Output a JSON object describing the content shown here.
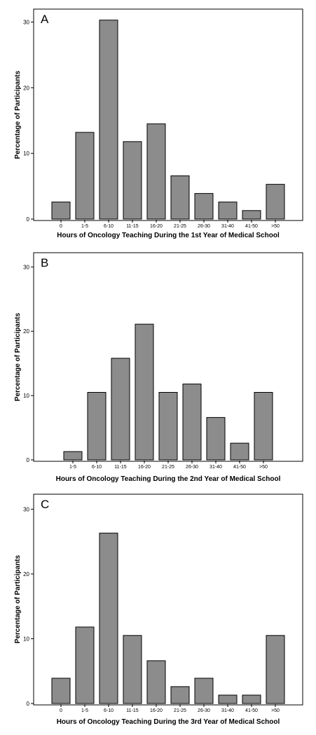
{
  "chart_data": [
    {
      "type": "bar",
      "panel_label": "A",
      "categories": [
        "0",
        "1-5",
        "6-10",
        "11-15",
        "16-20",
        "21-25",
        "26-30",
        "31-40",
        "41-50",
        ">50"
      ],
      "values": [
        2.6,
        13.2,
        30.3,
        11.8,
        14.5,
        6.6,
        3.9,
        2.6,
        1.3,
        5.3
      ],
      "xlabel": "Hours of Oncology Teaching During the 1st Year of Medical School",
      "ylabel": "Percentage of Participants",
      "yticks": [
        0,
        10,
        20,
        30
      ],
      "ylim": [
        0,
        30.8
      ],
      "grid": false,
      "bar_color": "#8c8c8c"
    },
    {
      "type": "bar",
      "panel_label": "B",
      "categories": [
        "1-5",
        "6-10",
        "11-15",
        "16-20",
        "21-25",
        "26-30",
        "31-40",
        "41-50",
        ">50"
      ],
      "values": [
        1.3,
        10.5,
        15.8,
        21.1,
        10.5,
        11.8,
        6.6,
        2.6,
        10.5
      ],
      "xlabel": "Hours of Oncology Teaching During the 2nd Year of Medical School",
      "ylabel": "Percentage of Participants",
      "yticks": [
        0,
        10,
        20,
        30
      ],
      "ylim": [
        0,
        30.8
      ],
      "grid": false,
      "bar_color": "#8c8c8c"
    },
    {
      "type": "bar",
      "panel_label": "C",
      "categories": [
        "0",
        "1-5",
        "6-10",
        "11-15",
        "16-20",
        "21-25",
        "26-30",
        "31-40",
        "41-50",
        ">50"
      ],
      "values": [
        3.9,
        11.8,
        26.3,
        10.5,
        6.6,
        2.6,
        3.9,
        1.3,
        1.3,
        10.5
      ],
      "xlabel": "Hours of Oncology Teaching During the 3rd Year of Medical School",
      "ylabel": "Percentage of Participants",
      "yticks": [
        0,
        10,
        20,
        30
      ],
      "ylim": [
        0,
        30.8
      ],
      "grid": false,
      "bar_color": "#8c8c8c"
    }
  ]
}
